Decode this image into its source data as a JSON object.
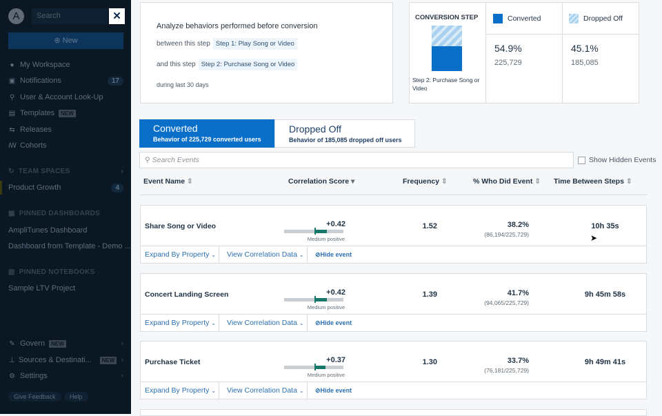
{
  "sidebar": {
    "search_placeholder": "Search",
    "new_label": "New",
    "items": [
      {
        "label": "My Workspace",
        "icon": "person-icon"
      },
      {
        "label": "Notifications",
        "badge": "17",
        "icon": "inbox-icon"
      },
      {
        "label": "User & Account Look-Up",
        "icon": "user-search-icon"
      },
      {
        "label": "Templates",
        "tag": "NEW",
        "icon": "templates-icon"
      },
      {
        "label": "Releases",
        "icon": "releases-icon"
      },
      {
        "label": "Cohorts",
        "icon": "cohorts-icon"
      }
    ],
    "team_spaces": "TEAM SPACES",
    "team_item": "Product Growth",
    "team_badge": "4",
    "pinned_dashboards": "PINNED DASHBOARDS",
    "dashboards": [
      "AmpliTunes Dashboard",
      "Dashboard from Template - Demo ..."
    ],
    "pinned_notebooks": "PINNED NOTEBOOKS",
    "notebooks": [
      "Sample LTV Project"
    ],
    "govern": "Govern",
    "govern_tag": "NEW",
    "sources": "Sources & Destinati...",
    "sources_tag": "NEW",
    "settings": "Settings",
    "feedback": "Give Feedback",
    "help": "Help"
  },
  "summary": {
    "title": "Analyze behaviors performed before conversion",
    "between": "between this step",
    "step1": "Step 1: Play Song or Video",
    "and": "and this step",
    "step2": "Step 2: Purchase Song or Video",
    "during": "during last 30 days"
  },
  "conversion": {
    "header": "CONVERSION STEP",
    "step": "Step 2: Purchase Song or Video",
    "converted_label": "Converted",
    "dropped_label": "Dropped Off",
    "converted_pct": "54.9%",
    "converted_count": "225,729",
    "dropped_pct": "45.1%",
    "dropped_count": "185,085",
    "converted_fraction": 0.549,
    "colors": {
      "converted": "#0a6fc9",
      "dropped": "#a9d0ef"
    }
  },
  "tabs": [
    {
      "label": "Converted",
      "sub": "Behavior of 225,729 converted users",
      "active": true
    },
    {
      "label": "Dropped Off",
      "sub": "Behavior of 185,085 dropped off users",
      "active": false
    }
  ],
  "search": {
    "placeholder": "Search Events",
    "show_hidden": "Show Hidden Events"
  },
  "columns": [
    "Event Name",
    "Correlation Score",
    "Frequency",
    "% Who Did Event",
    "Time Between Steps"
  ],
  "actions": {
    "expand": "Expand By Property",
    "view": "View Correlation Data",
    "hide": "Hide event"
  },
  "rows": [
    {
      "name": "Share Song or Video",
      "score": "+0.42",
      "score_value": 0.42,
      "strength": "Medium positive",
      "frequency": "1.52",
      "pct": "38.2%",
      "detail": "(86,194/225,729)",
      "time": "10h 35s"
    },
    {
      "name": "Concert Landing Screen",
      "score": "+0.42",
      "score_value": 0.42,
      "strength": "Medium positive",
      "frequency": "1.39",
      "pct": "41.7%",
      "detail": "(94,065/225,729)",
      "time": "9h 45m 58s"
    },
    {
      "name": "Purchase Ticket",
      "score": "+0.37",
      "score_value": 0.37,
      "strength": "Medium positive",
      "frequency": "1.30",
      "pct": "33.7%",
      "detail": "(76,181/225,729)",
      "time": "9h 49m 41s"
    }
  ]
}
